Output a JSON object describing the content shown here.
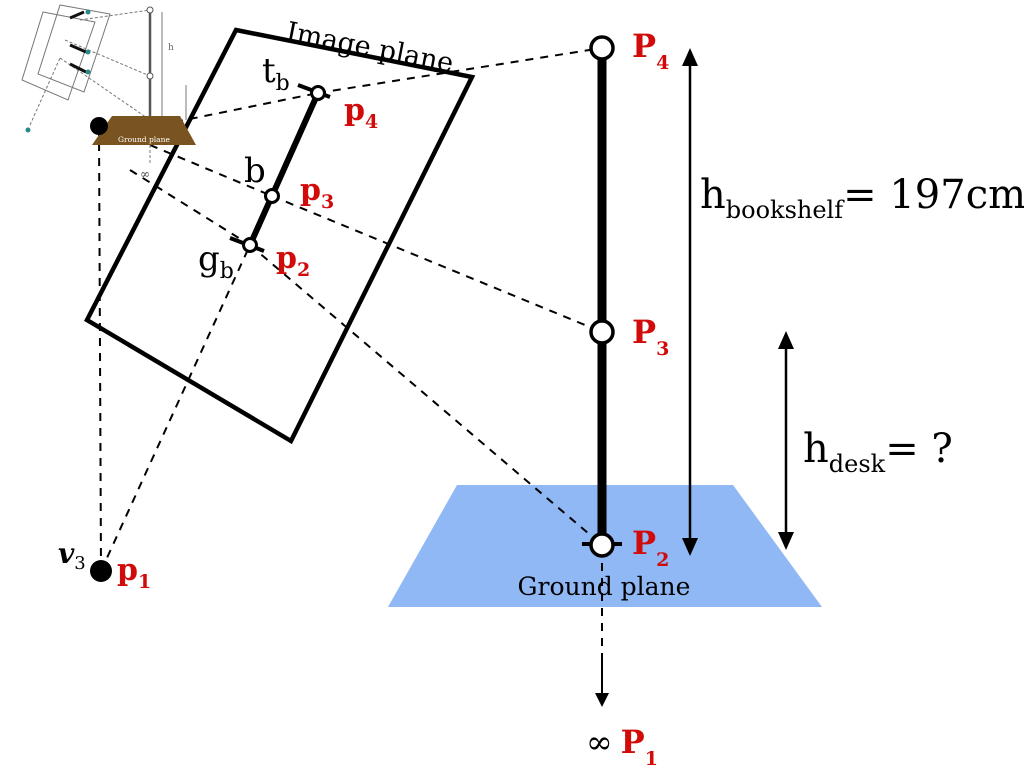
{
  "colors": {
    "ground_plane": "#8fb8f5",
    "red_label": "#d10a0a",
    "inset_ground": "#7a5420"
  },
  "image_plane": {
    "title": "Image plane",
    "t": {
      "main": "t",
      "sub": "b"
    },
    "b": {
      "main": "b"
    },
    "g": {
      "main": "g",
      "sub": "b"
    },
    "p4": {
      "main": "p",
      "sub": "4"
    },
    "p3": {
      "main": "p",
      "sub": "3"
    },
    "p2": {
      "main": "p",
      "sub": "2"
    },
    "v3_p1": {
      "v_main": "v",
      "v_sub": "3",
      "main": "p",
      "sub": "1"
    }
  },
  "world": {
    "P4": {
      "main": "P",
      "sub": "4"
    },
    "P3": {
      "main": "P",
      "sub": "3"
    },
    "P2": {
      "main": "P",
      "sub": "2"
    },
    "P1": {
      "prefix": "∞",
      "main": "P",
      "sub": "1"
    },
    "ground_label": "Ground plane"
  },
  "measures": {
    "bookshelf": {
      "main": "h",
      "sub": "bookshelf",
      "rest": "= 197cm"
    },
    "desk": {
      "main": "h",
      "sub": "desk",
      "rest": "= ?"
    }
  },
  "inset": {
    "ground_label": "Ground plane",
    "bookshelf_text": "h",
    "inf_text": "∞"
  }
}
